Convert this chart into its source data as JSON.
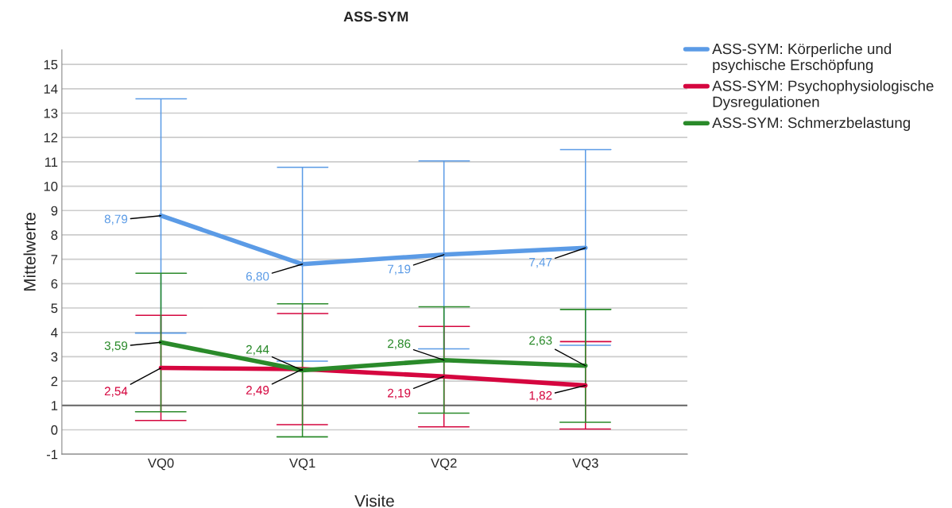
{
  "chart_data": {
    "type": "line",
    "title": "ASS-SYM",
    "xlabel": "Visite",
    "ylabel": "Mittelwerte",
    "categories": [
      "VQ0",
      "VQ1",
      "VQ2",
      "VQ3"
    ],
    "series": [
      {
        "name": "ASS-SYM: Körperliche und psychische Erschöpfung",
        "color": "#5b9be6",
        "values": [
          8.79,
          6.8,
          7.19,
          7.47
        ],
        "value_labels": [
          "8,79",
          "6,80",
          "7,19",
          "7,47"
        ],
        "errors": [
          [
            3.97,
            13.59
          ],
          [
            2.82,
            10.78
          ],
          [
            3.32,
            11.04
          ],
          [
            3.47,
            11.5
          ]
        ]
      },
      {
        "name": "ASS-SYM: Psychophysiologische Dysregulationen",
        "color": "#d5063f",
        "values": [
          2.54,
          2.49,
          2.19,
          1.82
        ],
        "value_labels": [
          "2,54",
          "2,49",
          "2,19",
          "1,82"
        ],
        "errors": [
          [
            0.38,
            4.7
          ],
          [
            0.21,
            4.77
          ],
          [
            0.12,
            4.24
          ],
          [
            0.03,
            3.62
          ]
        ]
      },
      {
        "name": "ASS-SYM: Schmerzbelastung",
        "color": "#2a8a2a",
        "values": [
          3.59,
          2.44,
          2.86,
          2.63
        ],
        "value_labels": [
          "3,59",
          "2,44",
          "2,86",
          "2,63"
        ],
        "errors": [
          [
            0.74,
            6.43
          ],
          [
            -0.29,
            5.17
          ],
          [
            0.68,
            5.05
          ],
          [
            0.31,
            4.94
          ]
        ]
      }
    ],
    "ylim": [
      -1,
      15.6
    ],
    "yticks": [
      -1,
      0,
      1,
      2,
      3,
      4,
      5,
      6,
      7,
      8,
      9,
      10,
      11,
      12,
      13,
      14,
      15
    ],
    "ref_lines": [
      {
        "axis": "y",
        "value": 1,
        "color": "#666666"
      }
    ],
    "grid": "y",
    "legend": "top right",
    "marker": "none",
    "line_style": "solid"
  }
}
